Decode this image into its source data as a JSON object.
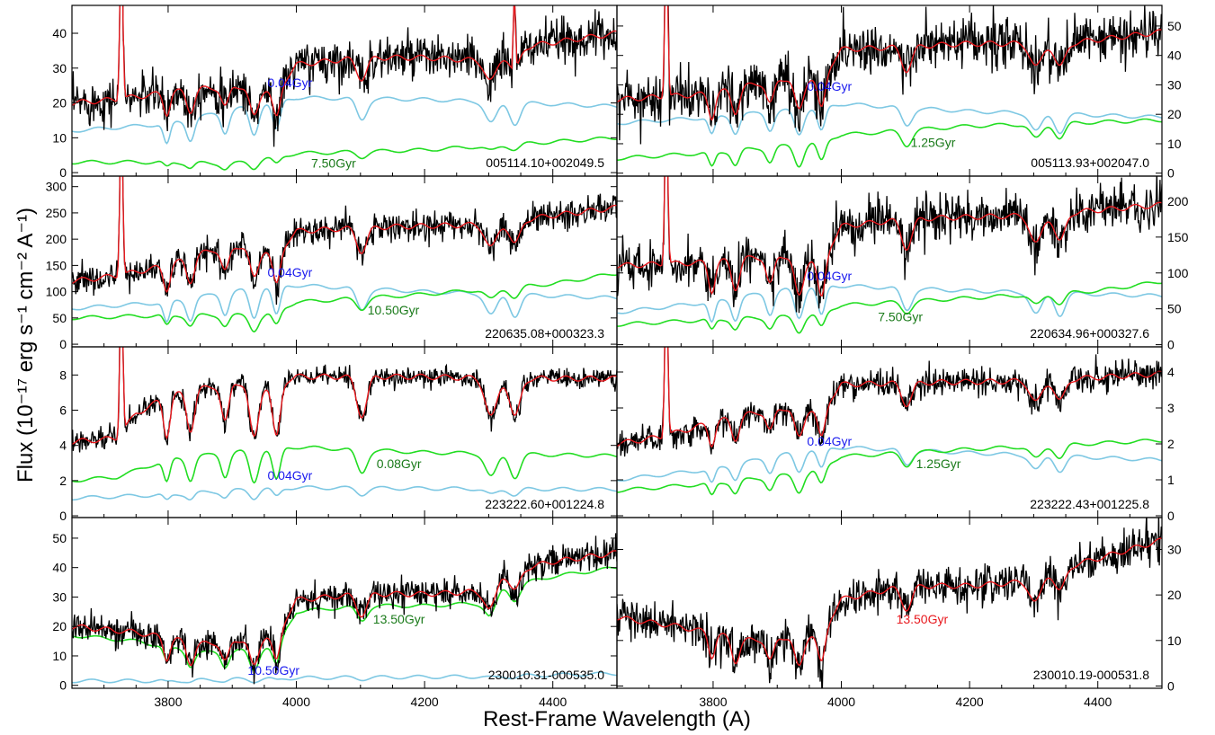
{
  "figure": {
    "ylabel": "Flux (10⁻¹⁷ erg s⁻¹ cm⁻² A⁻¹)",
    "xlabel": "Rest-Frame Wavelength (A)"
  },
  "colors": {
    "observed": "#000000",
    "fit": "#e8191e",
    "young": "#7ec8e3",
    "old": "#22dd22",
    "young_label": "#1a1aee",
    "old_label": "#1a7a1a",
    "single_label": "#e8191e"
  },
  "chart_data": [
    {
      "type": "line",
      "panel": "row1-left",
      "object": "005114.10+002049.5",
      "xlim": [
        3650,
        4500
      ],
      "ylim": [
        -1,
        48
      ],
      "yticks": [
        0,
        10,
        20,
        30,
        40
      ],
      "xticks": [
        3800,
        4000,
        4200,
        4400
      ],
      "show_xticklabels": false,
      "yaxis": "left",
      "continuum": [
        [
          3650,
          20
        ],
        [
          3720,
          21
        ],
        [
          3800,
          23
        ],
        [
          3900,
          25
        ],
        [
          3970,
          24
        ],
        [
          4000,
          31
        ],
        [
          4100,
          33
        ],
        [
          4200,
          33
        ],
        [
          4300,
          32
        ],
        [
          4350,
          36
        ],
        [
          4500,
          40
        ]
      ],
      "noise": 3.2,
      "emission_height": 50,
      "trough_depth": 6,
      "components": [
        {
          "label": "0.04Gyr",
          "role": "young",
          "continuum": [
            [
              3650,
              12
            ],
            [
              3800,
              14
            ],
            [
              3950,
              20
            ],
            [
              4000,
              21.5
            ],
            [
              4200,
              21
            ],
            [
              4500,
              19
            ]
          ],
          "depth": 6
        },
        {
          "label": "7.50Gyr",
          "role": "old",
          "continuum": [
            [
              3650,
              3
            ],
            [
              3800,
              3
            ],
            [
              3900,
              2.5
            ],
            [
              4000,
              5.5
            ],
            [
              4200,
              6.5
            ],
            [
              4500,
              10
            ]
          ],
          "depth": 1.5
        }
      ]
    },
    {
      "type": "line",
      "panel": "row1-right",
      "object": "005113.93+002047.0",
      "xlim": [
        3650,
        4500
      ],
      "ylim": [
        -1,
        57
      ],
      "yticks": [
        0,
        10,
        20,
        30,
        40,
        50
      ],
      "xticks": [
        3800,
        4000,
        4200,
        4400
      ],
      "show_xticklabels": false,
      "yaxis": "right",
      "continuum": [
        [
          3650,
          25
        ],
        [
          3800,
          27
        ],
        [
          3900,
          32
        ],
        [
          3970,
          33
        ],
        [
          4000,
          42
        ],
        [
          4200,
          44
        ],
        [
          4350,
          44
        ],
        [
          4500,
          48
        ]
      ],
      "noise": 4.5,
      "emission_height": 60,
      "trough_depth": 8,
      "components": [
        {
          "label": "0.04Gyr",
          "role": "young",
          "continuum": [
            [
              3650,
              17
            ],
            [
              3800,
              19
            ],
            [
              3950,
              22
            ],
            [
              4000,
              23.5
            ],
            [
              4200,
              21
            ],
            [
              4500,
              19
            ]
          ],
          "depth": 6
        },
        {
          "label": "1.25Gyr",
          "role": "old",
          "continuum": [
            [
              3650,
              5
            ],
            [
              3800,
              7
            ],
            [
              3950,
              10
            ],
            [
              4000,
              13
            ],
            [
              4200,
              16
            ],
            [
              4500,
              18
            ]
          ],
          "depth": 5
        }
      ]
    },
    {
      "type": "line",
      "panel": "row2-left",
      "object": "220635.08+000323.3",
      "xlim": [
        3650,
        4500
      ],
      "ylim": [
        -5,
        320
      ],
      "yticks": [
        0,
        50,
        100,
        150,
        200,
        250,
        300
      ],
      "xticks": [
        3800,
        4000,
        4200,
        4400
      ],
      "show_xticklabels": false,
      "yaxis": "left",
      "continuum": [
        [
          3650,
          120
        ],
        [
          3720,
          130
        ],
        [
          3800,
          150
        ],
        [
          3870,
          180
        ],
        [
          3930,
          190
        ],
        [
          3970,
          175
        ],
        [
          4000,
          215
        ],
        [
          4100,
          222
        ],
        [
          4200,
          225
        ],
        [
          4300,
          228
        ],
        [
          4400,
          245
        ],
        [
          4500,
          260
        ]
      ],
      "noise": 14,
      "emission_height": 320,
      "trough_depth": 45,
      "components": [
        {
          "label": "0.04Gyr",
          "role": "young",
          "continuum": [
            [
              3650,
              68
            ],
            [
              3800,
              80
            ],
            [
              3950,
              110
            ],
            [
              4000,
              112
            ],
            [
              4200,
              100
            ],
            [
              4500,
              88
            ]
          ],
          "depth": 40
        },
        {
          "label": "10.50Gyr",
          "role": "old",
          "continuum": [
            [
              3650,
              50
            ],
            [
              3800,
              55
            ],
            [
              3950,
              55
            ],
            [
              4000,
              80
            ],
            [
              4200,
              95
            ],
            [
              4400,
              115
            ],
            [
              4500,
              135
            ]
          ],
          "depth": 20
        }
      ]
    },
    {
      "type": "line",
      "panel": "row2-right",
      "object": "220634.96+000327.6",
      "xlim": [
        3650,
        4500
      ],
      "ylim": [
        -3,
        235
      ],
      "yticks": [
        0,
        50,
        100,
        150,
        200
      ],
      "xticks": [
        3800,
        4000,
        4200,
        4400
      ],
      "show_xticklabels": false,
      "yaxis": "right",
      "continuum": [
        [
          3650,
          110
        ],
        [
          3800,
          115
        ],
        [
          3900,
          125
        ],
        [
          3970,
          120
        ],
        [
          4000,
          165
        ],
        [
          4100,
          175
        ],
        [
          4200,
          178
        ],
        [
          4300,
          180
        ],
        [
          4500,
          195
        ]
      ],
      "noise": 16,
      "emission_height": 250,
      "trough_depth": 40,
      "components": [
        {
          "label": "0.04Gyr",
          "role": "young",
          "continuum": [
            [
              3650,
              45
            ],
            [
              3800,
              60
            ],
            [
              3950,
              82
            ],
            [
              4000,
              82
            ],
            [
              4200,
              75
            ],
            [
              4500,
              68
            ]
          ],
          "depth": 30
        },
        {
          "label": "7.50Gyr",
          "role": "old",
          "continuum": [
            [
              3650,
              28
            ],
            [
              3800,
              35
            ],
            [
              3950,
              40
            ],
            [
              4000,
              55
            ],
            [
              4200,
              65
            ],
            [
              4400,
              75
            ],
            [
              4500,
              88
            ]
          ],
          "depth": 15
        }
      ]
    },
    {
      "type": "line",
      "panel": "row3-left",
      "object": "223222.60+001224.8",
      "xlim": [
        3650,
        4500
      ],
      "ylim": [
        -0.1,
        9.6
      ],
      "yticks": [
        0,
        2,
        4,
        6,
        8
      ],
      "xticks": [
        3800,
        4000,
        4200,
        4400
      ],
      "show_xticklabels": false,
      "yaxis": "left",
      "continuum": [
        [
          3650,
          4.2
        ],
        [
          3720,
          4.4
        ],
        [
          3750,
          5.8
        ],
        [
          3800,
          6.8
        ],
        [
          3900,
          7.6
        ],
        [
          3960,
          7.4
        ],
        [
          4000,
          7.9
        ],
        [
          4200,
          7.9
        ],
        [
          4300,
          7.8
        ],
        [
          4500,
          7.8
        ]
      ],
      "noise": 0.28,
      "emission_height": 10,
      "trough_depth": 2.2,
      "components": [
        {
          "label": "0.08Gyr",
          "role": "old",
          "continuum": [
            [
              3650,
              2.0
            ],
            [
              3720,
              2.2
            ],
            [
              3800,
              3.2
            ],
            [
              3950,
              3.8
            ],
            [
              4000,
              3.9
            ],
            [
              4200,
              3.6
            ],
            [
              4500,
              3.4
            ]
          ],
          "depth": 1.3
        },
        {
          "label": "0.04Gyr",
          "role": "young",
          "continuum": [
            [
              3650,
              1.0
            ],
            [
              3800,
              1.2
            ],
            [
              3950,
              1.55
            ],
            [
              4000,
              1.6
            ],
            [
              4200,
              1.55
            ],
            [
              4500,
              1.5
            ]
          ],
          "depth": 0.35
        }
      ]
    },
    {
      "type": "line",
      "panel": "row3-right",
      "object": "223222.43+001225.8",
      "xlim": [
        3650,
        4500
      ],
      "ylim": [
        -0.05,
        4.7
      ],
      "yticks": [
        0,
        1,
        2,
        3,
        4
      ],
      "xticks": [
        3800,
        4000,
        4200,
        4400
      ],
      "show_xticklabels": false,
      "yaxis": "right",
      "continuum": [
        [
          3650,
          2.0
        ],
        [
          3720,
          2.2
        ],
        [
          3800,
          2.6
        ],
        [
          3900,
          3.0
        ],
        [
          3970,
          3.0
        ],
        [
          4000,
          3.65
        ],
        [
          4100,
          3.7
        ],
        [
          4300,
          3.75
        ],
        [
          4500,
          3.95
        ]
      ],
      "noise": 0.2,
      "emission_height": 5,
      "trough_depth": 0.6,
      "components": [
        {
          "label": "0.04Gyr",
          "role": "young",
          "continuum": [
            [
              3650,
              1.0
            ],
            [
              3800,
              1.3
            ],
            [
              3950,
              1.85
            ],
            [
              4000,
              1.9
            ],
            [
              4200,
              1.75
            ],
            [
              4500,
              1.55
            ]
          ],
          "depth": 0.4
        },
        {
          "label": "1.25Gyr",
          "role": "old",
          "continuum": [
            [
              3650,
              0.7
            ],
            [
              3800,
              0.9
            ],
            [
              3950,
              1.2
            ],
            [
              4000,
              1.65
            ],
            [
              4200,
              1.85
            ],
            [
              4500,
              2.1
            ]
          ],
          "depth": 0.35
        }
      ]
    },
    {
      "type": "line",
      "panel": "row4-left",
      "object": "230010.31-000535.0",
      "xlim": [
        3650,
        4500
      ],
      "ylim": [
        -1,
        57
      ],
      "yticks": [
        0,
        10,
        20,
        30,
        40,
        50
      ],
      "xticks": [
        3800,
        4000,
        4200,
        4400
      ],
      "show_xticklabels": true,
      "yaxis": "left",
      "continuum": [
        [
          3650,
          20
        ],
        [
          3750,
          18
        ],
        [
          3850,
          14
        ],
        [
          3930,
          16
        ],
        [
          3970,
          18
        ],
        [
          4000,
          29
        ],
        [
          4100,
          31
        ],
        [
          4200,
          31
        ],
        [
          4300,
          32
        ],
        [
          4320,
          38
        ],
        [
          4400,
          42
        ],
        [
          4500,
          45
        ]
      ],
      "noise": 2.5,
      "emission_height": 0,
      "trough_depth": 7,
      "components": [
        {
          "label": "13.50Gyr",
          "role": "old",
          "continuum": [
            [
              3650,
              17
            ],
            [
              3750,
              15
            ],
            [
              3850,
              11
            ],
            [
              3930,
              12
            ],
            [
              3970,
              14
            ],
            [
              4000,
              25
            ],
            [
              4100,
              27
            ],
            [
              4200,
              27
            ],
            [
              4300,
              28
            ],
            [
              4320,
              33
            ],
            [
              4400,
              37
            ],
            [
              4500,
              40
            ]
          ],
          "depth": 5
        },
        {
          "label": "10.50Gyr",
          "role": "young",
          "continuum": [
            [
              3650,
              1.5
            ],
            [
              3800,
              1.5
            ],
            [
              4000,
              2.5
            ],
            [
              4300,
              3.0
            ],
            [
              4500,
              4.0
            ]
          ],
          "depth": 0.5
        }
      ]
    },
    {
      "type": "line",
      "panel": "row4-right",
      "object": "230010.19-000531.8",
      "xlim": [
        3650,
        4500
      ],
      "ylim": [
        -0.5,
        37
      ],
      "yticks": [
        0,
        10,
        20,
        30
      ],
      "xticks": [
        3800,
        4000,
        4200,
        4400
      ],
      "show_xticklabels": true,
      "yaxis": "right",
      "continuum": [
        [
          3650,
          15
        ],
        [
          3750,
          13
        ],
        [
          3850,
          10
        ],
        [
          3930,
          11
        ],
        [
          3970,
          12
        ],
        [
          4000,
          19
        ],
        [
          4100,
          22
        ],
        [
          4200,
          22
        ],
        [
          4300,
          23
        ],
        [
          4320,
          25
        ],
        [
          4400,
          28
        ],
        [
          4500,
          32
        ]
      ],
      "noise": 2.2,
      "emission_height": 0,
      "trough_depth": 5,
      "components": [
        {
          "label": "13.50Gyr",
          "role": "single"
        }
      ]
    }
  ]
}
